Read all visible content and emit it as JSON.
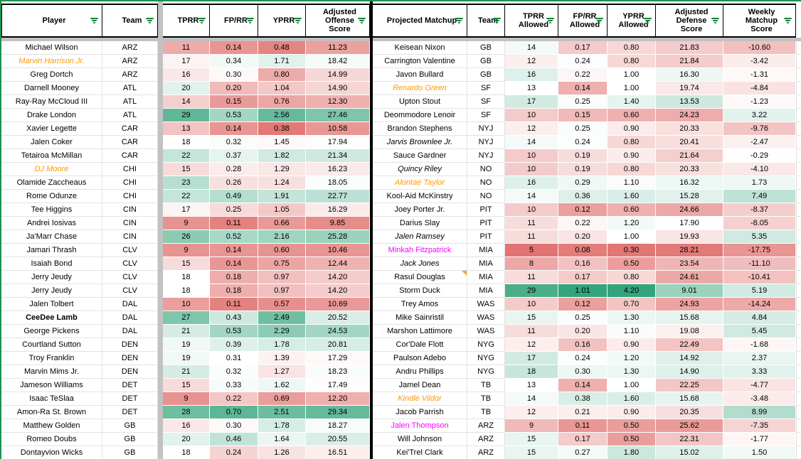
{
  "colors": {
    "sheet_green_border": "#1f9150",
    "pane_divider_gray": "#c2c2c2",
    "table_divider_black": "#000000",
    "scale_red": "#dd6360",
    "scale_green": "#34a47c",
    "orange_player_text": "#ff9900",
    "magenta_player_text": "#ff00ff",
    "filter_icon_green": "#188038",
    "note_marker_orange": "#f5a623"
  },
  "icons": {
    "filter": "filter-icon (three shrinking green bars)"
  },
  "headers": {
    "player": "Player",
    "team": "Team",
    "tprr": "TPRR",
    "fprr": "FP/RR",
    "yprr": "YPRR",
    "aos": "Adjusted Offense Score",
    "pm": "Projected Matchup",
    "team2": "Team",
    "tprra": "TPRR Allowed",
    "fprra": "FP/RR Allowed",
    "yprra": "YPRR Allowed",
    "ads": "Adjusted Defense Score",
    "wms": "Weekly Matchup Score"
  },
  "left": {
    "rows": [
      {
        "player": "Michael Wilson",
        "team": "ARZ",
        "tprr": 11,
        "fprr": 0.14,
        "yprr": 0.48,
        "aos": 11.23,
        "style": ""
      },
      {
        "player": "Marvin Harrison Jr.",
        "team": "ARZ",
        "tprr": 17,
        "fprr": 0.34,
        "yprr": 1.71,
        "aos": 18.42,
        "style": "orange-italic"
      },
      {
        "player": "Greg Dortch",
        "team": "ARZ",
        "tprr": 16,
        "fprr": 0.3,
        "yprr": 0.8,
        "aos": 14.99,
        "style": ""
      },
      {
        "player": "Darnell Mooney",
        "team": "ATL",
        "tprr": 20,
        "fprr": 0.2,
        "yprr": 1.04,
        "aos": 14.9,
        "style": ""
      },
      {
        "player": "Ray-Ray McCloud III",
        "team": "ATL",
        "tprr": 14,
        "fprr": 0.15,
        "yprr": 0.76,
        "aos": 12.3,
        "style": ""
      },
      {
        "player": "Drake London",
        "team": "ATL",
        "tprr": 29,
        "fprr": 0.53,
        "yprr": 2.56,
        "aos": 27.46,
        "style": ""
      },
      {
        "player": "Xavier Legette",
        "team": "CAR",
        "tprr": 13,
        "fprr": 0.14,
        "yprr": 0.38,
        "aos": 10.58,
        "style": ""
      },
      {
        "player": "Jalen Coker",
        "team": "CAR",
        "tprr": 18,
        "fprr": 0.32,
        "yprr": 1.45,
        "aos": 17.94,
        "style": ""
      },
      {
        "player": "Tetairoa McMillan",
        "team": "CAR",
        "tprr": 22,
        "fprr": 0.37,
        "yprr": 1.82,
        "aos": 21.34,
        "style": ""
      },
      {
        "player": "DJ Moore",
        "team": "CHI",
        "tprr": 15,
        "fprr": 0.28,
        "yprr": 1.29,
        "aos": 16.23,
        "style": "orange-italic"
      },
      {
        "player": "Olamide Zaccheaus",
        "team": "CHI",
        "tprr": 23,
        "fprr": 0.26,
        "yprr": 1.24,
        "aos": 18.05,
        "style": ""
      },
      {
        "player": "Rome Odunze",
        "team": "CHI",
        "tprr": 22,
        "fprr": 0.49,
        "yprr": 1.91,
        "aos": 22.77,
        "style": ""
      },
      {
        "player": "Tee Higgins",
        "team": "CIN",
        "tprr": 17,
        "fprr": 0.25,
        "yprr": 1.05,
        "aos": 16.29,
        "style": ""
      },
      {
        "player": "Andrei Iosivas",
        "team": "CIN",
        "tprr": 9,
        "fprr": 0.11,
        "yprr": 0.66,
        "aos": 9.85,
        "style": ""
      },
      {
        "player": "Ja'Marr Chase",
        "team": "CIN",
        "tprr": 26,
        "fprr": 0.52,
        "yprr": 2.16,
        "aos": 25.28,
        "style": ""
      },
      {
        "player": "Jamari Thrash",
        "team": "CLV",
        "tprr": 9,
        "fprr": 0.14,
        "yprr": 0.6,
        "aos": 10.46,
        "style": ""
      },
      {
        "player": "Isaiah Bond",
        "team": "CLV",
        "tprr": 15,
        "fprr": 0.14,
        "yprr": 0.75,
        "aos": 12.44,
        "style": ""
      },
      {
        "player": "Jerry Jeudy",
        "team": "CLV",
        "tprr": 18,
        "fprr": 0.18,
        "yprr": 0.97,
        "aos": 14.2,
        "style": ""
      },
      {
        "player": "Jerry Jeudy",
        "team": "CLV",
        "tprr": 18,
        "fprr": 0.18,
        "yprr": 0.97,
        "aos": 14.2,
        "style": ""
      },
      {
        "player": "Jalen Tolbert",
        "team": "DAL",
        "tprr": 10,
        "fprr": 0.11,
        "yprr": 0.57,
        "aos": 10.69,
        "style": ""
      },
      {
        "player": "CeeDee Lamb",
        "team": "DAL",
        "tprr": 27,
        "fprr": 0.43,
        "yprr": 2.49,
        "aos": 20.52,
        "style": "bold"
      },
      {
        "player": "George Pickens",
        "team": "DAL",
        "tprr": 21,
        "fprr": 0.53,
        "yprr": 2.29,
        "aos": 24.53,
        "style": ""
      },
      {
        "player": "Courtland Sutton",
        "team": "DEN",
        "tprr": 19,
        "fprr": 0.39,
        "yprr": 1.78,
        "aos": 20.81,
        "style": ""
      },
      {
        "player": "Troy Franklin",
        "team": "DEN",
        "tprr": 19,
        "fprr": 0.31,
        "yprr": 1.39,
        "aos": 17.29,
        "style": ""
      },
      {
        "player": "Marvin Mims Jr.",
        "team": "DEN",
        "tprr": 21,
        "fprr": 0.32,
        "yprr": 1.27,
        "aos": 18.23,
        "style": ""
      },
      {
        "player": "Jameson Williams",
        "team": "DET",
        "tprr": 15,
        "fprr": 0.33,
        "yprr": 1.62,
        "aos": 17.49,
        "style": ""
      },
      {
        "player": "Isaac TeSlaa",
        "team": "DET",
        "tprr": 9,
        "fprr": 0.22,
        "yprr": 0.69,
        "aos": 12.2,
        "style": ""
      },
      {
        "player": "Amon-Ra St. Brown",
        "team": "DET",
        "tprr": 28,
        "fprr": 0.7,
        "yprr": 2.51,
        "aos": 29.34,
        "style": ""
      },
      {
        "player": "Matthew Golden",
        "team": "GB",
        "tprr": 16,
        "fprr": 0.3,
        "yprr": 1.78,
        "aos": 18.27,
        "style": ""
      },
      {
        "player": "Romeo Doubs",
        "team": "GB",
        "tprr": 20,
        "fprr": 0.46,
        "yprr": 1.64,
        "aos": 20.55,
        "style": ""
      },
      {
        "player": "Dontayvion Wicks",
        "team": "GB",
        "tprr": 18,
        "fprr": 0.24,
        "yprr": 1.26,
        "aos": 16.51,
        "style": ""
      }
    ]
  },
  "right": {
    "rows": [
      {
        "player": "Keisean Nixon",
        "team": "GB",
        "tprra": 14,
        "fprra": 0.17,
        "yprra": 0.8,
        "ads": 21.83,
        "wms": -10.6,
        "style": "",
        "note": false
      },
      {
        "player": "Carrington Valentine",
        "team": "GB",
        "tprra": 12,
        "fprra": 0.24,
        "yprra": 0.8,
        "ads": 21.84,
        "wms": -3.42,
        "style": "",
        "note": false
      },
      {
        "player": "Javon Bullard",
        "team": "GB",
        "tprra": 16,
        "fprra": 0.22,
        "yprra": 1.0,
        "ads": 16.3,
        "wms": -1.31,
        "style": "",
        "note": false
      },
      {
        "player": "Renardo Green",
        "team": "SF",
        "tprra": 13,
        "fprra": 0.14,
        "yprra": 1.0,
        "ads": 19.74,
        "wms": -4.84,
        "style": "orange-italic",
        "note": false
      },
      {
        "player": "Upton Stout",
        "team": "SF",
        "tprra": 17,
        "fprra": 0.25,
        "yprra": 1.4,
        "ads": 13.53,
        "wms": -1.23,
        "style": "",
        "note": false
      },
      {
        "player": "Deommodore Lenoir",
        "team": "SF",
        "tprra": 10,
        "fprra": 0.15,
        "yprra": 0.6,
        "ads": 24.23,
        "wms": 3.22,
        "style": "",
        "note": false
      },
      {
        "player": "Brandon Stephens",
        "team": "NYJ",
        "tprra": 12,
        "fprra": 0.25,
        "yprra": 0.9,
        "ads": 20.33,
        "wms": -9.76,
        "style": "",
        "note": false
      },
      {
        "player": "Jarvis Brownlee Jr.",
        "team": "NYJ",
        "tprra": 14,
        "fprra": 0.24,
        "yprra": 0.8,
        "ads": 20.41,
        "wms": -2.47,
        "style": "black-italic",
        "note": false
      },
      {
        "player": "Sauce Gardner",
        "team": "NYJ",
        "tprra": 10,
        "fprra": 0.19,
        "yprra": 0.9,
        "ads": 21.64,
        "wms": -0.29,
        "style": "",
        "note": false
      },
      {
        "player": "Quincy Riley",
        "team": "NO",
        "tprra": 10,
        "fprra": 0.19,
        "yprra": 0.8,
        "ads": 20.33,
        "wms": -4.1,
        "style": "black-italic",
        "note": false
      },
      {
        "player": "Alontae Taylor",
        "team": "NO",
        "tprra": 16,
        "fprra": 0.29,
        "yprra": 1.1,
        "ads": 16.32,
        "wms": 1.73,
        "style": "orange-italic",
        "note": false
      },
      {
        "player": "Kool-Aid McKinstry",
        "team": "NO",
        "tprra": 14,
        "fprra": 0.36,
        "yprra": 1.6,
        "ads": 15.28,
        "wms": 7.49,
        "style": "",
        "note": false
      },
      {
        "player": "Joey Porter Jr.",
        "team": "PIT",
        "tprra": 10,
        "fprra": 0.12,
        "yprra": 0.6,
        "ads": 24.66,
        "wms": -8.37,
        "style": "",
        "note": false
      },
      {
        "player": "Darius Slay",
        "team": "PIT",
        "tprra": 11,
        "fprra": 0.22,
        "yprra": 1.2,
        "ads": 17.9,
        "wms": -8.05,
        "style": "",
        "note": false
      },
      {
        "player": "Jalen Ramsey",
        "team": "PIT",
        "tprra": 11,
        "fprra": 0.2,
        "yprra": 1.0,
        "ads": 19.93,
        "wms": 5.35,
        "style": "black-italic",
        "note": false
      },
      {
        "player": "Minkah Fitzpatrick",
        "team": "MIA",
        "tprra": 5,
        "fprra": 0.08,
        "yprra": 0.3,
        "ads": 28.21,
        "wms": -17.75,
        "style": "magenta",
        "note": false
      },
      {
        "player": "Jack Jones",
        "team": "MIA",
        "tprra": 8,
        "fprra": 0.16,
        "yprra": 0.5,
        "ads": 23.54,
        "wms": -11.1,
        "style": "black-italic",
        "note": false
      },
      {
        "player": "Rasul Douglas",
        "team": "MIA",
        "tprra": 11,
        "fprra": 0.17,
        "yprra": 0.8,
        "ads": 24.61,
        "wms": -10.41,
        "style": "",
        "note": true
      },
      {
        "player": "Storm Duck",
        "team": "MIA",
        "tprra": 29,
        "fprra": 1.01,
        "yprra": 4.2,
        "ads": 9.01,
        "wms": 5.19,
        "style": "",
        "note": false
      },
      {
        "player": "Trey Amos",
        "team": "WAS",
        "tprra": 10,
        "fprra": 0.12,
        "yprra": 0.7,
        "ads": 24.93,
        "wms": -14.24,
        "style": "",
        "note": false
      },
      {
        "player": "Mike Sainristil",
        "team": "WAS",
        "tprra": 15,
        "fprra": 0.25,
        "yprra": 1.3,
        "ads": 15.68,
        "wms": 4.84,
        "style": "",
        "note": false
      },
      {
        "player": "Marshon Lattimore",
        "team": "WAS",
        "tprra": 11,
        "fprra": 0.2,
        "yprra": 1.1,
        "ads": 19.08,
        "wms": 5.45,
        "style": "",
        "note": false
      },
      {
        "player": "Cor'Dale Flott",
        "team": "NYG",
        "tprra": 12,
        "fprra": 0.16,
        "yprra": 0.9,
        "ads": 22.49,
        "wms": -1.68,
        "style": "",
        "note": false
      },
      {
        "player": "Paulson Adebo",
        "team": "NYG",
        "tprra": 17,
        "fprra": 0.24,
        "yprra": 1.2,
        "ads": 14.92,
        "wms": 2.37,
        "style": "",
        "note": false
      },
      {
        "player": "Andru Phillips",
        "team": "NYG",
        "tprra": 18,
        "fprra": 0.3,
        "yprra": 1.3,
        "ads": 14.9,
        "wms": 3.33,
        "style": "",
        "note": false
      },
      {
        "player": "Jamel Dean",
        "team": "TB",
        "tprra": 13,
        "fprra": 0.14,
        "yprra": 1.0,
        "ads": 22.25,
        "wms": -4.77,
        "style": "",
        "note": false
      },
      {
        "player": "Kindle Vildor",
        "team": "TB",
        "tprra": 14,
        "fprra": 0.38,
        "yprra": 1.6,
        "ads": 15.68,
        "wms": -3.48,
        "style": "orange-italic",
        "note": false
      },
      {
        "player": "Jacob Parrish",
        "team": "TB",
        "tprra": 12,
        "fprra": 0.21,
        "yprra": 0.9,
        "ads": 20.35,
        "wms": 8.99,
        "style": "",
        "note": false
      },
      {
        "player": "Jalen Thompson",
        "team": "ARZ",
        "tprra": 9,
        "fprra": 0.11,
        "yprra": 0.5,
        "ads": 25.62,
        "wms": -7.35,
        "style": "magenta",
        "note": false
      },
      {
        "player": "Will Johnson",
        "team": "ARZ",
        "tprra": 15,
        "fprra": 0.17,
        "yprra": 0.5,
        "ads": 22.31,
        "wms": -1.77,
        "style": "",
        "note": false
      },
      {
        "player": "Kei'Trel Clark",
        "team": "ARZ",
        "tprra": 15,
        "fprra": 0.27,
        "yprra": 1.8,
        "ads": 15.02,
        "wms": 1.5,
        "style": "",
        "note": false
      }
    ]
  }
}
